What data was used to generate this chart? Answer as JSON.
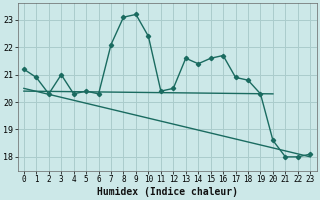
{
  "xlabel": "Humidex (Indice chaleur)",
  "background_color": "#cce8e8",
  "grid_color": "#aacccc",
  "line_color": "#1a6b60",
  "xlim": [
    -0.5,
    23.5
  ],
  "ylim": [
    17.5,
    23.6
  ],
  "yticks": [
    18,
    19,
    20,
    21,
    22,
    23
  ],
  "xticks": [
    0,
    1,
    2,
    3,
    4,
    5,
    6,
    7,
    8,
    9,
    10,
    11,
    12,
    13,
    14,
    15,
    16,
    17,
    18,
    19,
    20,
    21,
    22,
    23
  ],
  "series1_x": [
    0,
    1,
    2,
    3,
    4,
    5,
    6,
    7,
    8,
    9,
    10,
    11,
    12,
    13,
    14,
    15,
    16,
    17,
    18,
    19,
    20,
    21,
    22,
    23
  ],
  "series1_y": [
    21.2,
    20.9,
    20.3,
    21.0,
    20.3,
    20.4,
    20.3,
    22.1,
    23.1,
    23.2,
    22.4,
    20.4,
    20.5,
    21.6,
    21.4,
    21.6,
    21.7,
    20.9,
    20.8,
    20.3,
    18.6,
    18.0,
    18.0,
    18.1
  ],
  "series2_x": [
    0,
    20
  ],
  "series2_y": [
    20.4,
    20.3
  ],
  "series3_x": [
    0,
    23
  ],
  "series3_y": [
    20.5,
    18.0
  ]
}
